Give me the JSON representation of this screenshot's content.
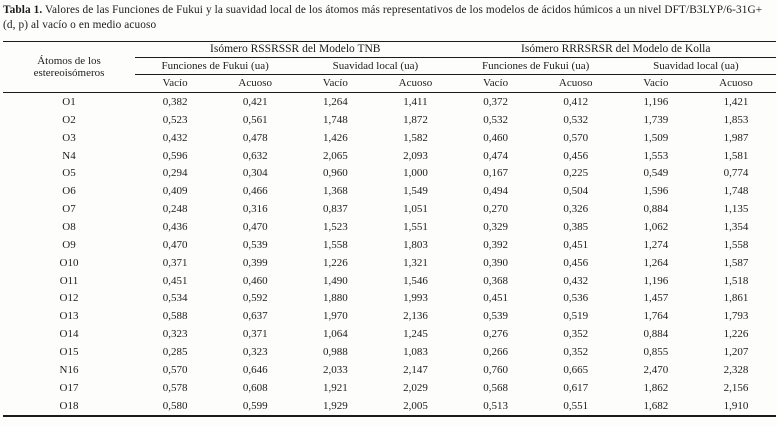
{
  "page": {
    "background_color": "#fdfdfc",
    "text_color": "#1c1c1c",
    "rule_color": "#1b1b1b"
  },
  "title": {
    "label": "Tabla 1.",
    "text": " Valores de las Funciones de Fukui y la suavidad local de los átomos más representativos de los modelos de ácidos húmicos a un nivel DFT/B3LYP/6-31G+ (d, p) al vacío o en medio acuoso"
  },
  "table": {
    "stub_header": "Átomos de los estereoisómeros",
    "group_headers": [
      "Isómero RSSRSSR del Modelo TNB",
      "Isómero RRRSRSR del Modelo de Kolla"
    ],
    "subgroup_headers": [
      "Funciones de Fukui (ua)",
      "Suavidad local (ua)",
      "Funciones de Fukui (ua)",
      "Suavidad local (ua)"
    ],
    "col_headers": [
      "Vacío",
      "Acuoso",
      "Vacío",
      "Acuoso",
      "Vacío",
      "Acuoso",
      "Vacío",
      "Acuoso"
    ],
    "rows": [
      {
        "atom": "O1",
        "values": [
          "0,382",
          "0,421",
          "1,264",
          "1,411",
          "0,372",
          "0,412",
          "1,196",
          "1,421"
        ]
      },
      {
        "atom": "O2",
        "values": [
          "0,523",
          "0,561",
          "1,748",
          "1,872",
          "0,532",
          "0,532",
          "1,739",
          "1,853"
        ]
      },
      {
        "atom": "O3",
        "values": [
          "0,432",
          "0,478",
          "1,426",
          "1,582",
          "0,460",
          "0,570",
          "1,509",
          "1,987"
        ]
      },
      {
        "atom": "N4",
        "values": [
          "0,596",
          "0,632",
          "2,065",
          "2,093",
          "0,474",
          "0,456",
          "1,553",
          "1,581"
        ]
      },
      {
        "atom": "O5",
        "values": [
          "0,294",
          "0,304",
          "0,960",
          "1,000",
          "0,167",
          "0,225",
          "0,549",
          "0,774"
        ]
      },
      {
        "atom": "O6",
        "values": [
          "0,409",
          "0,466",
          "1,368",
          "1,549",
          "0,494",
          "0,504",
          "1,596",
          "1,748"
        ]
      },
      {
        "atom": "O7",
        "values": [
          "0,248",
          "0,316",
          "0,837",
          "1,051",
          "0,270",
          "0,326",
          "0,884",
          "1,135"
        ]
      },
      {
        "atom": "O8",
        "values": [
          "0,436",
          "0,470",
          "1,523",
          "1,551",
          "0,329",
          "0,385",
          "1,062",
          "1,354"
        ]
      },
      {
        "atom": "O9",
        "values": [
          "0,470",
          "0,539",
          "1,558",
          "1,803",
          "0,392",
          "0,451",
          "1,274",
          "1,558"
        ]
      },
      {
        "atom": "O10",
        "values": [
          "0,371",
          "0,399",
          "1,226",
          "1,321",
          "0,390",
          "0,456",
          "1,264",
          "1,587"
        ]
      },
      {
        "atom": "O11",
        "values": [
          "0,451",
          "0,460",
          "1,490",
          "1,546",
          "0,368",
          "0,432",
          "1,196",
          "1,518"
        ]
      },
      {
        "atom": "O12",
        "values": [
          "0,534",
          "0,592",
          "1,880",
          "1,993",
          "0,451",
          "0,536",
          "1,457",
          "1,861"
        ]
      },
      {
        "atom": "O13",
        "values": [
          "0,588",
          "0,637",
          "1,970",
          "2,136",
          "0,539",
          "0,519",
          "1,764",
          "1,793"
        ]
      },
      {
        "atom": "O14",
        "values": [
          "0,323",
          "0,371",
          "1,064",
          "1,245",
          "0,276",
          "0,352",
          "0,884",
          "1,226"
        ]
      },
      {
        "atom": "O15",
        "values": [
          "0,285",
          "0,323",
          "0,988",
          "1,083",
          "0,266",
          "0,352",
          "0,855",
          "1,207"
        ]
      },
      {
        "atom": "N16",
        "values": [
          "0,570",
          "0,646",
          "2,033",
          "2,147",
          "0,760",
          "0,665",
          "2,470",
          "2,328"
        ]
      },
      {
        "atom": "O17",
        "values": [
          "0,578",
          "0,608",
          "1,921",
          "2,029",
          "0,568",
          "0,617",
          "1,862",
          "2,156"
        ]
      },
      {
        "atom": "O18",
        "values": [
          "0,580",
          "0,599",
          "1,929",
          "2,005",
          "0,513",
          "0,551",
          "1,682",
          "1,910"
        ]
      }
    ]
  }
}
